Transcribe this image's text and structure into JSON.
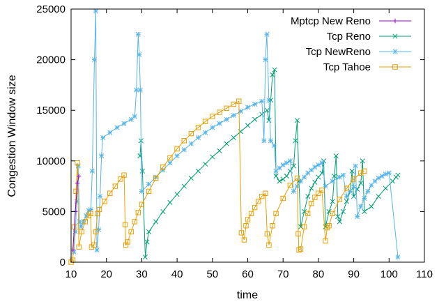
{
  "chart_data": {
    "type": "line",
    "xlabel": "time",
    "ylabel": "Congestion Window size",
    "xlim": [
      10,
      110
    ],
    "ylim": [
      0,
      25000
    ],
    "x_ticks": [
      10,
      20,
      30,
      40,
      50,
      60,
      70,
      80,
      90,
      100,
      110
    ],
    "y_ticks": [
      0,
      5000,
      10000,
      15000,
      20000,
      25000
    ],
    "x_tick_labels": [
      "10",
      "20",
      "30",
      "40",
      "50",
      "60",
      "70",
      "80",
      "90",
      "100",
      "110"
    ],
    "y_tick_labels": [
      "0",
      "5000",
      "10000",
      "15000",
      "20000",
      "25000"
    ],
    "grid": false,
    "legend_position": "top-right",
    "series": [
      {
        "name": "Mptcp New Reno",
        "color": "#9400d3",
        "marker": "plus",
        "points": [
          [
            10.5,
            1200
          ],
          [
            11.2,
            5000
          ],
          [
            11.8,
            7800
          ],
          [
            12.2,
            8500
          ]
        ]
      },
      {
        "name": "Tcp Reno",
        "color": "#009e73",
        "marker": "cross",
        "points": [
          [
            29.5,
            10500
          ],
          [
            29.8,
            12000
          ],
          [
            30.2,
            9000
          ],
          [
            31,
            500
          ],
          [
            31.5,
            2000
          ],
          [
            32,
            3000
          ],
          [
            34,
            4000
          ],
          [
            36,
            5000
          ],
          [
            38,
            5900
          ],
          [
            40,
            6700
          ],
          [
            42,
            7500
          ],
          [
            44,
            8300
          ],
          [
            46,
            9000
          ],
          [
            48,
            9700
          ],
          [
            50,
            10400
          ],
          [
            52,
            11000
          ],
          [
            54,
            11700
          ],
          [
            56,
            12300
          ],
          [
            58,
            12900
          ],
          [
            60,
            13500
          ],
          [
            62,
            14100
          ],
          [
            64,
            14600
          ],
          [
            65.5,
            15000
          ],
          [
            66,
            14000
          ],
          [
            66.5,
            16000
          ],
          [
            67,
            18500
          ],
          [
            67.6,
            19000
          ],
          [
            68,
            8500
          ],
          [
            69,
            8000
          ],
          [
            70,
            8200
          ],
          [
            71,
            8500
          ],
          [
            72,
            9000
          ],
          [
            73,
            9500
          ],
          [
            73.5,
            12000
          ],
          [
            74,
            14000
          ],
          [
            74.5,
            8000
          ],
          [
            75,
            3500
          ],
          [
            76,
            5000
          ],
          [
            77,
            6500
          ],
          [
            78,
            7300
          ],
          [
            79,
            7900
          ],
          [
            80,
            8400
          ],
          [
            81,
            8800
          ],
          [
            81.5,
            10000
          ],
          [
            82,
            3500
          ],
          [
            83,
            5000
          ],
          [
            84,
            6000
          ],
          [
            84.5,
            8500
          ],
          [
            85,
            10500
          ],
          [
            85.5,
            4500
          ],
          [
            86,
            4000
          ],
          [
            87,
            5000
          ],
          [
            88,
            6000
          ],
          [
            89,
            7000
          ],
          [
            89.5,
            9000
          ],
          [
            90,
            6500
          ],
          [
            91,
            7200
          ],
          [
            92,
            7800
          ],
          [
            92.5,
            10000
          ],
          [
            93,
            5000
          ],
          [
            95,
            5500
          ],
          [
            97,
            6500
          ],
          [
            99,
            7300
          ],
          [
            101,
            8000
          ],
          [
            102,
            8400
          ],
          [
            102.5,
            8600
          ]
        ]
      },
      {
        "name": "Tcp NewReno",
        "color": "#56b4e9",
        "marker": "star",
        "points": [
          [
            10.8,
            1000
          ],
          [
            11.2,
            3000
          ],
          [
            11.6,
            6000
          ],
          [
            12,
            9500
          ],
          [
            12.4,
            4000
          ],
          [
            12.8,
            3500
          ],
          [
            13.5,
            4000
          ],
          [
            14.3,
            4600
          ],
          [
            15,
            5100
          ],
          [
            15.6,
            5200
          ],
          [
            16,
            9000
          ],
          [
            16.6,
            20000
          ],
          [
            17,
            24800
          ],
          [
            17.3,
            1200
          ],
          [
            17.8,
            3200
          ],
          [
            18.2,
            6500
          ],
          [
            18.6,
            10500
          ],
          [
            19,
            12300
          ],
          [
            21,
            12800
          ],
          [
            23,
            13300
          ],
          [
            25,
            13700
          ],
          [
            27,
            14100
          ],
          [
            28,
            14400
          ],
          [
            28.5,
            17000
          ],
          [
            29,
            22500
          ],
          [
            29.3,
            20500
          ],
          [
            29.6,
            17000
          ],
          [
            30,
            7000
          ],
          [
            32,
            7700
          ],
          [
            34,
            8400
          ],
          [
            36,
            9100
          ],
          [
            38,
            9800
          ],
          [
            40,
            10500
          ],
          [
            42,
            11100
          ],
          [
            44,
            11700
          ],
          [
            46,
            12300
          ],
          [
            48,
            12800
          ],
          [
            50,
            13300
          ],
          [
            52,
            13700
          ],
          [
            54,
            14100
          ],
          [
            56,
            14500
          ],
          [
            58,
            14900
          ],
          [
            60,
            15300
          ],
          [
            62,
            15600
          ],
          [
            64,
            15900
          ],
          [
            64.6,
            12000
          ],
          [
            65,
            20000
          ],
          [
            65.4,
            22500
          ],
          [
            66,
            16000
          ],
          [
            66.5,
            12000
          ],
          [
            67.5,
            11500
          ],
          [
            68,
            9000
          ],
          [
            69,
            9300
          ],
          [
            70,
            9600
          ],
          [
            71,
            9800
          ],
          [
            72,
            10000
          ],
          [
            73,
            7000
          ],
          [
            74,
            7500
          ],
          [
            75,
            8000
          ],
          [
            76,
            8400
          ],
          [
            77,
            8800
          ],
          [
            78,
            9100
          ],
          [
            79,
            9400
          ],
          [
            80,
            9600
          ],
          [
            81,
            9800
          ],
          [
            82,
            7500
          ],
          [
            84,
            8000
          ],
          [
            86,
            8400
          ],
          [
            87,
            8600
          ],
          [
            88,
            6500
          ],
          [
            89,
            7000
          ],
          [
            90,
            7400
          ],
          [
            90.5,
            9500
          ],
          [
            91,
            4500
          ],
          [
            92,
            5500
          ],
          [
            93,
            6300
          ],
          [
            94,
            7000
          ],
          [
            95,
            7600
          ],
          [
            96,
            8000
          ],
          [
            97,
            8300
          ],
          [
            98,
            8500
          ],
          [
            99,
            8700
          ],
          [
            100,
            8800
          ],
          [
            102.5,
            500
          ]
        ]
      },
      {
        "name": "Tcp Tahoe",
        "color": "#e69f00",
        "marker": "square",
        "points": [
          [
            10,
            0
          ],
          [
            10.5,
            200
          ],
          [
            11,
            3500
          ],
          [
            11.4,
            7000
          ],
          [
            11.8,
            9800
          ],
          [
            12.2,
            1500
          ],
          [
            13,
            3000
          ],
          [
            14,
            4000
          ],
          [
            15,
            4600
          ],
          [
            15.5,
            4800
          ],
          [
            15.8,
            1500
          ],
          [
            16.5,
            1700
          ],
          [
            17,
            3000
          ],
          [
            17.5,
            4800
          ],
          [
            18,
            5200
          ],
          [
            19.5,
            6000
          ],
          [
            21,
            6800
          ],
          [
            22.5,
            7500
          ],
          [
            24,
            8200
          ],
          [
            25,
            8600
          ],
          [
            25.3,
            3700
          ],
          [
            25.5,
            1700
          ],
          [
            26,
            2000
          ],
          [
            27,
            3000
          ],
          [
            28,
            4000
          ],
          [
            29,
            4900
          ],
          [
            30,
            5700
          ],
          [
            32,
            7000
          ],
          [
            34,
            8300
          ],
          [
            36,
            9400
          ],
          [
            38,
            10300
          ],
          [
            40,
            11200
          ],
          [
            42,
            12000
          ],
          [
            44,
            12700
          ],
          [
            46,
            13300
          ],
          [
            48,
            13900
          ],
          [
            50,
            14400
          ],
          [
            52,
            14800
          ],
          [
            54,
            15200
          ],
          [
            56,
            15600
          ],
          [
            57.5,
            15900
          ],
          [
            58.2,
            2900
          ],
          [
            59,
            2200
          ],
          [
            59.5,
            3600
          ],
          [
            60,
            4200
          ],
          [
            61,
            4800
          ],
          [
            62,
            5400
          ],
          [
            63,
            6000
          ],
          [
            64,
            6500
          ],
          [
            65,
            6800
          ],
          [
            65.5,
            2800
          ],
          [
            66,
            1700
          ],
          [
            67,
            3600
          ],
          [
            68,
            4800
          ],
          [
            70,
            6300
          ],
          [
            72,
            7600
          ],
          [
            74,
            8300
          ],
          [
            74.3,
            2800
          ],
          [
            74.5,
            1200
          ],
          [
            75,
            1300
          ],
          [
            76,
            3500
          ],
          [
            77,
            4800
          ],
          [
            78,
            5800
          ],
          [
            79,
            6400
          ],
          [
            80,
            6800
          ],
          [
            81,
            7100
          ],
          [
            82,
            2100
          ],
          [
            82.5,
            3400
          ],
          [
            83,
            3600
          ],
          [
            84,
            4800
          ],
          [
            86,
            6200
          ],
          [
            88,
            7300
          ],
          [
            90,
            8200
          ],
          [
            92,
            8800
          ],
          [
            93,
            9000
          ]
        ]
      }
    ]
  }
}
